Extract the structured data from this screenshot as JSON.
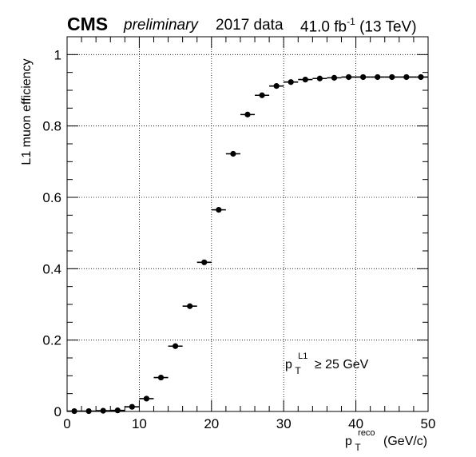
{
  "header": {
    "experiment": "CMS",
    "status": "preliminary",
    "dataset": "2017 data",
    "lumi_value": "41.0 fb",
    "lumi_exp": "-1",
    "energy": "(13 TeV)"
  },
  "annotation": {
    "main": "p",
    "sub": "T",
    "sup": "L1",
    "rest": "≥ 25 GeV"
  },
  "xaxis_label": {
    "main": "p",
    "sub": "T",
    "sup": "reco",
    "rest": "(GeV/c)"
  },
  "chart_data": {
    "type": "scatter",
    "ylabel": "L1 muon efficiency",
    "xlim": [
      0,
      50
    ],
    "ylim": [
      0,
      1.05
    ],
    "x_ticks": [
      0,
      10,
      20,
      30,
      40,
      50
    ],
    "x_tick_labels": [
      "0",
      "10",
      "20",
      "30",
      "40",
      "50"
    ],
    "y_ticks": [
      0,
      0.2,
      0.4,
      0.6,
      0.8,
      1
    ],
    "y_tick_labels": [
      "0",
      "0.2",
      "0.4",
      "0.6",
      "0.8",
      "1"
    ],
    "grid": true,
    "marker": "filled-circle",
    "color": "#000000",
    "x_error_halfwidth": 1,
    "series": [
      {
        "x": [
          1,
          3,
          5,
          7,
          9,
          11,
          13,
          15,
          17,
          19,
          21,
          23,
          25,
          27,
          29,
          31,
          33,
          35,
          37,
          39,
          41,
          43,
          45,
          47,
          49
        ],
        "y": [
          0.001,
          0.001,
          0.002,
          0.003,
          0.013,
          0.036,
          0.095,
          0.183,
          0.295,
          0.418,
          0.565,
          0.722,
          0.832,
          0.886,
          0.912,
          0.923,
          0.93,
          0.933,
          0.935,
          0.937,
          0.937,
          0.937,
          0.937,
          0.937,
          0.937
        ]
      }
    ]
  }
}
